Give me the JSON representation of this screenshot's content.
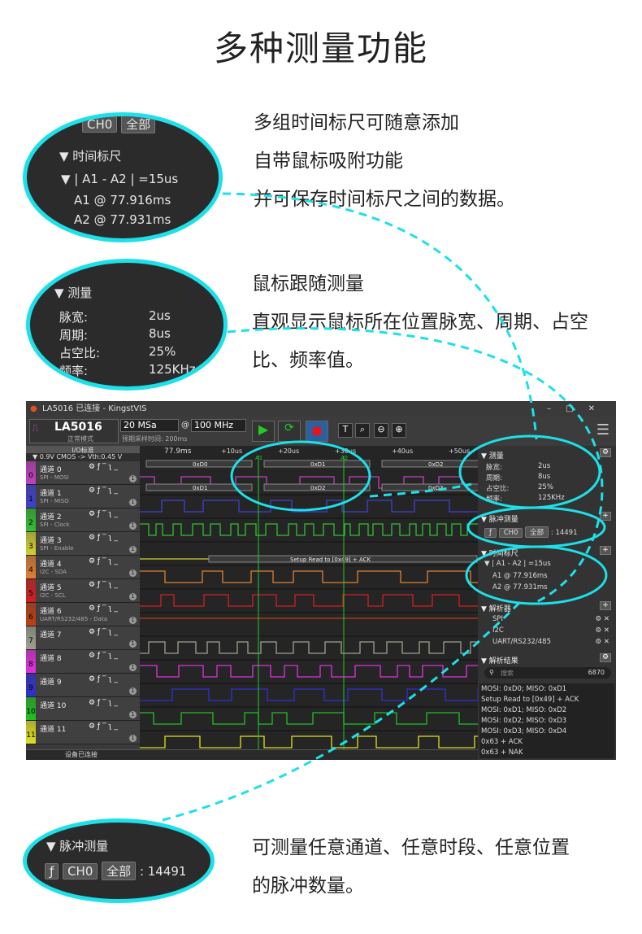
{
  "page": {
    "title": "多种测量功能",
    "feature1": [
      "多组时间标尺可随意添加",
      "自带鼠标吸附功能",
      "并可保存时间标尺之间的数据。"
    ],
    "feature2": [
      "鼠标跟随测量",
      "直观显示鼠标所在位置脉宽、周期、占空",
      "比、频率值。"
    ],
    "feature3": [
      "可测量任意通道、任意时段、任意位置",
      "的脉冲数量。"
    ]
  },
  "accent": "#1de0e8",
  "app": {
    "window_title": "LA5016 已连接 - KingstVIS",
    "device": "LA5016",
    "mode": "正常模式",
    "sample_count": "20 MSa",
    "at": "@",
    "sample_rate": "100 MHz",
    "expected_time": "预期采样时间: 200ms",
    "io_standard": "I/O标准",
    "io_value": "▼ 0.9V CMOS -> Vth:0.45 V",
    "status": "设备已连接",
    "time_ruler": {
      "start": "77.9ms",
      "ticks": [
        "+10us",
        "+20us",
        "+30us",
        "+40us",
        "+50us"
      ]
    },
    "channels": [
      {
        "num": "0",
        "name": "通道 0",
        "sub": "SPI - MOSI",
        "color": "#c040c0"
      },
      {
        "num": "1",
        "name": "通道 1",
        "sub": "SPI - MISO",
        "color": "#4040d0"
      },
      {
        "num": "2",
        "name": "通道 2",
        "sub": "SPI - Clock",
        "color": "#30c030"
      },
      {
        "num": "3",
        "name": "通道 3",
        "sub": "SPI - Enable",
        "color": "#d0d030"
      },
      {
        "num": "4",
        "name": "通道 4",
        "sub": "I2C - SDA",
        "color": "#e08030"
      },
      {
        "num": "5",
        "name": "通道 5",
        "sub": "I2C - SCL",
        "color": "#d02020"
      },
      {
        "num": "6",
        "name": "通道 6",
        "sub": "UART/RS232/485 - Data",
        "color": "#c04010"
      },
      {
        "num": "7",
        "name": "通道 7",
        "sub": "",
        "color": "#a0a090"
      },
      {
        "num": "8",
        "name": "通道 8",
        "sub": "",
        "color": "#e030e0"
      },
      {
        "num": "9",
        "name": "通道 9",
        "sub": "",
        "color": "#3030d0"
      },
      {
        "num": "10",
        "name": "通道 10",
        "sub": "",
        "color": "#20c020"
      },
      {
        "num": "11",
        "name": "通道 11",
        "sub": "",
        "color": "#e0e020"
      }
    ],
    "channel_controls": "⚙ ƒ ‾ ʅ _",
    "decode_labels": {
      "mosi": [
        "0xD0",
        "0xD1",
        "0xD2"
      ],
      "miso": [
        "0xD1",
        "0xD2",
        "0xD3"
      ],
      "i2c": "Setup Read to [0x49] + ACK"
    },
    "cursors": [
      "A1",
      "A2"
    ],
    "measure": {
      "title": "▼ 测量",
      "rows": [
        [
          "脉宽:",
          "2us"
        ],
        [
          "周期:",
          "8us"
        ],
        [
          "占空比:",
          "25%"
        ],
        [
          "频率:",
          "125KHz"
        ]
      ]
    },
    "pulse": {
      "title": "▼ 脉冲测量",
      "edge": "ƒ",
      "channel": "CH0",
      "range": "全部",
      "count": ": 14491"
    },
    "ruler": {
      "title": "▼ 时间标尺",
      "pair": "▼ | A1 - A2 | =15us",
      "a1": "A1 @ 77.916ms",
      "a2": "A2 @ 77.931ms",
      "pair_short": "=15us"
    },
    "analyzers": {
      "title": "▼ 解析器",
      "items": [
        "SPI",
        "I2C",
        "UART/RS232/485"
      ]
    },
    "results": {
      "title": "▼ 解析结果",
      "search_placeholder": "搜索",
      "count": "6870",
      "items": [
        "MOSI: 0xD0;  MISO: 0xD1",
        "Setup Read to [0x49] + ACK",
        "MOSI: 0xD1;  MISO: 0xD2",
        "MOSI: 0xD2;  MISO: 0xD3",
        "MOSI: 0xD3;  MISO: 0xD4",
        "0x63 + ACK",
        "0x63 + NAK"
      ]
    }
  }
}
